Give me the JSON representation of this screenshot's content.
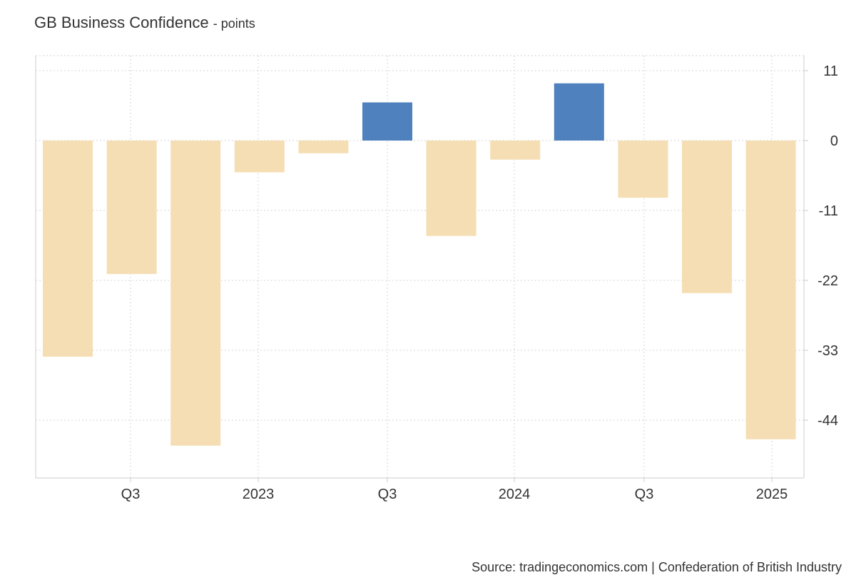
{
  "title": "GB Business Confidence",
  "title_suffix": "- points",
  "source": "Source: tradingeconomics.com | Confederation of British Industry",
  "chart_data": {
    "type": "bar",
    "title": "GB Business Confidence",
    "unit": "points",
    "values": [
      -34,
      -21,
      -48,
      -5,
      -2,
      6,
      -15,
      -3,
      9,
      -9,
      -24,
      -47
    ],
    "x_tick_labels": [
      "Q3",
      "2023",
      "Q3",
      "2024",
      "Q3",
      "2025"
    ],
    "y_ticks": [
      11,
      0,
      -11,
      -22,
      -33,
      -44
    ],
    "ylim": [
      -53,
      13
    ],
    "grid": true,
    "y_axis_position": "right",
    "colors": {
      "positive": "#4e81bd",
      "negative": "#f5deb3"
    }
  }
}
